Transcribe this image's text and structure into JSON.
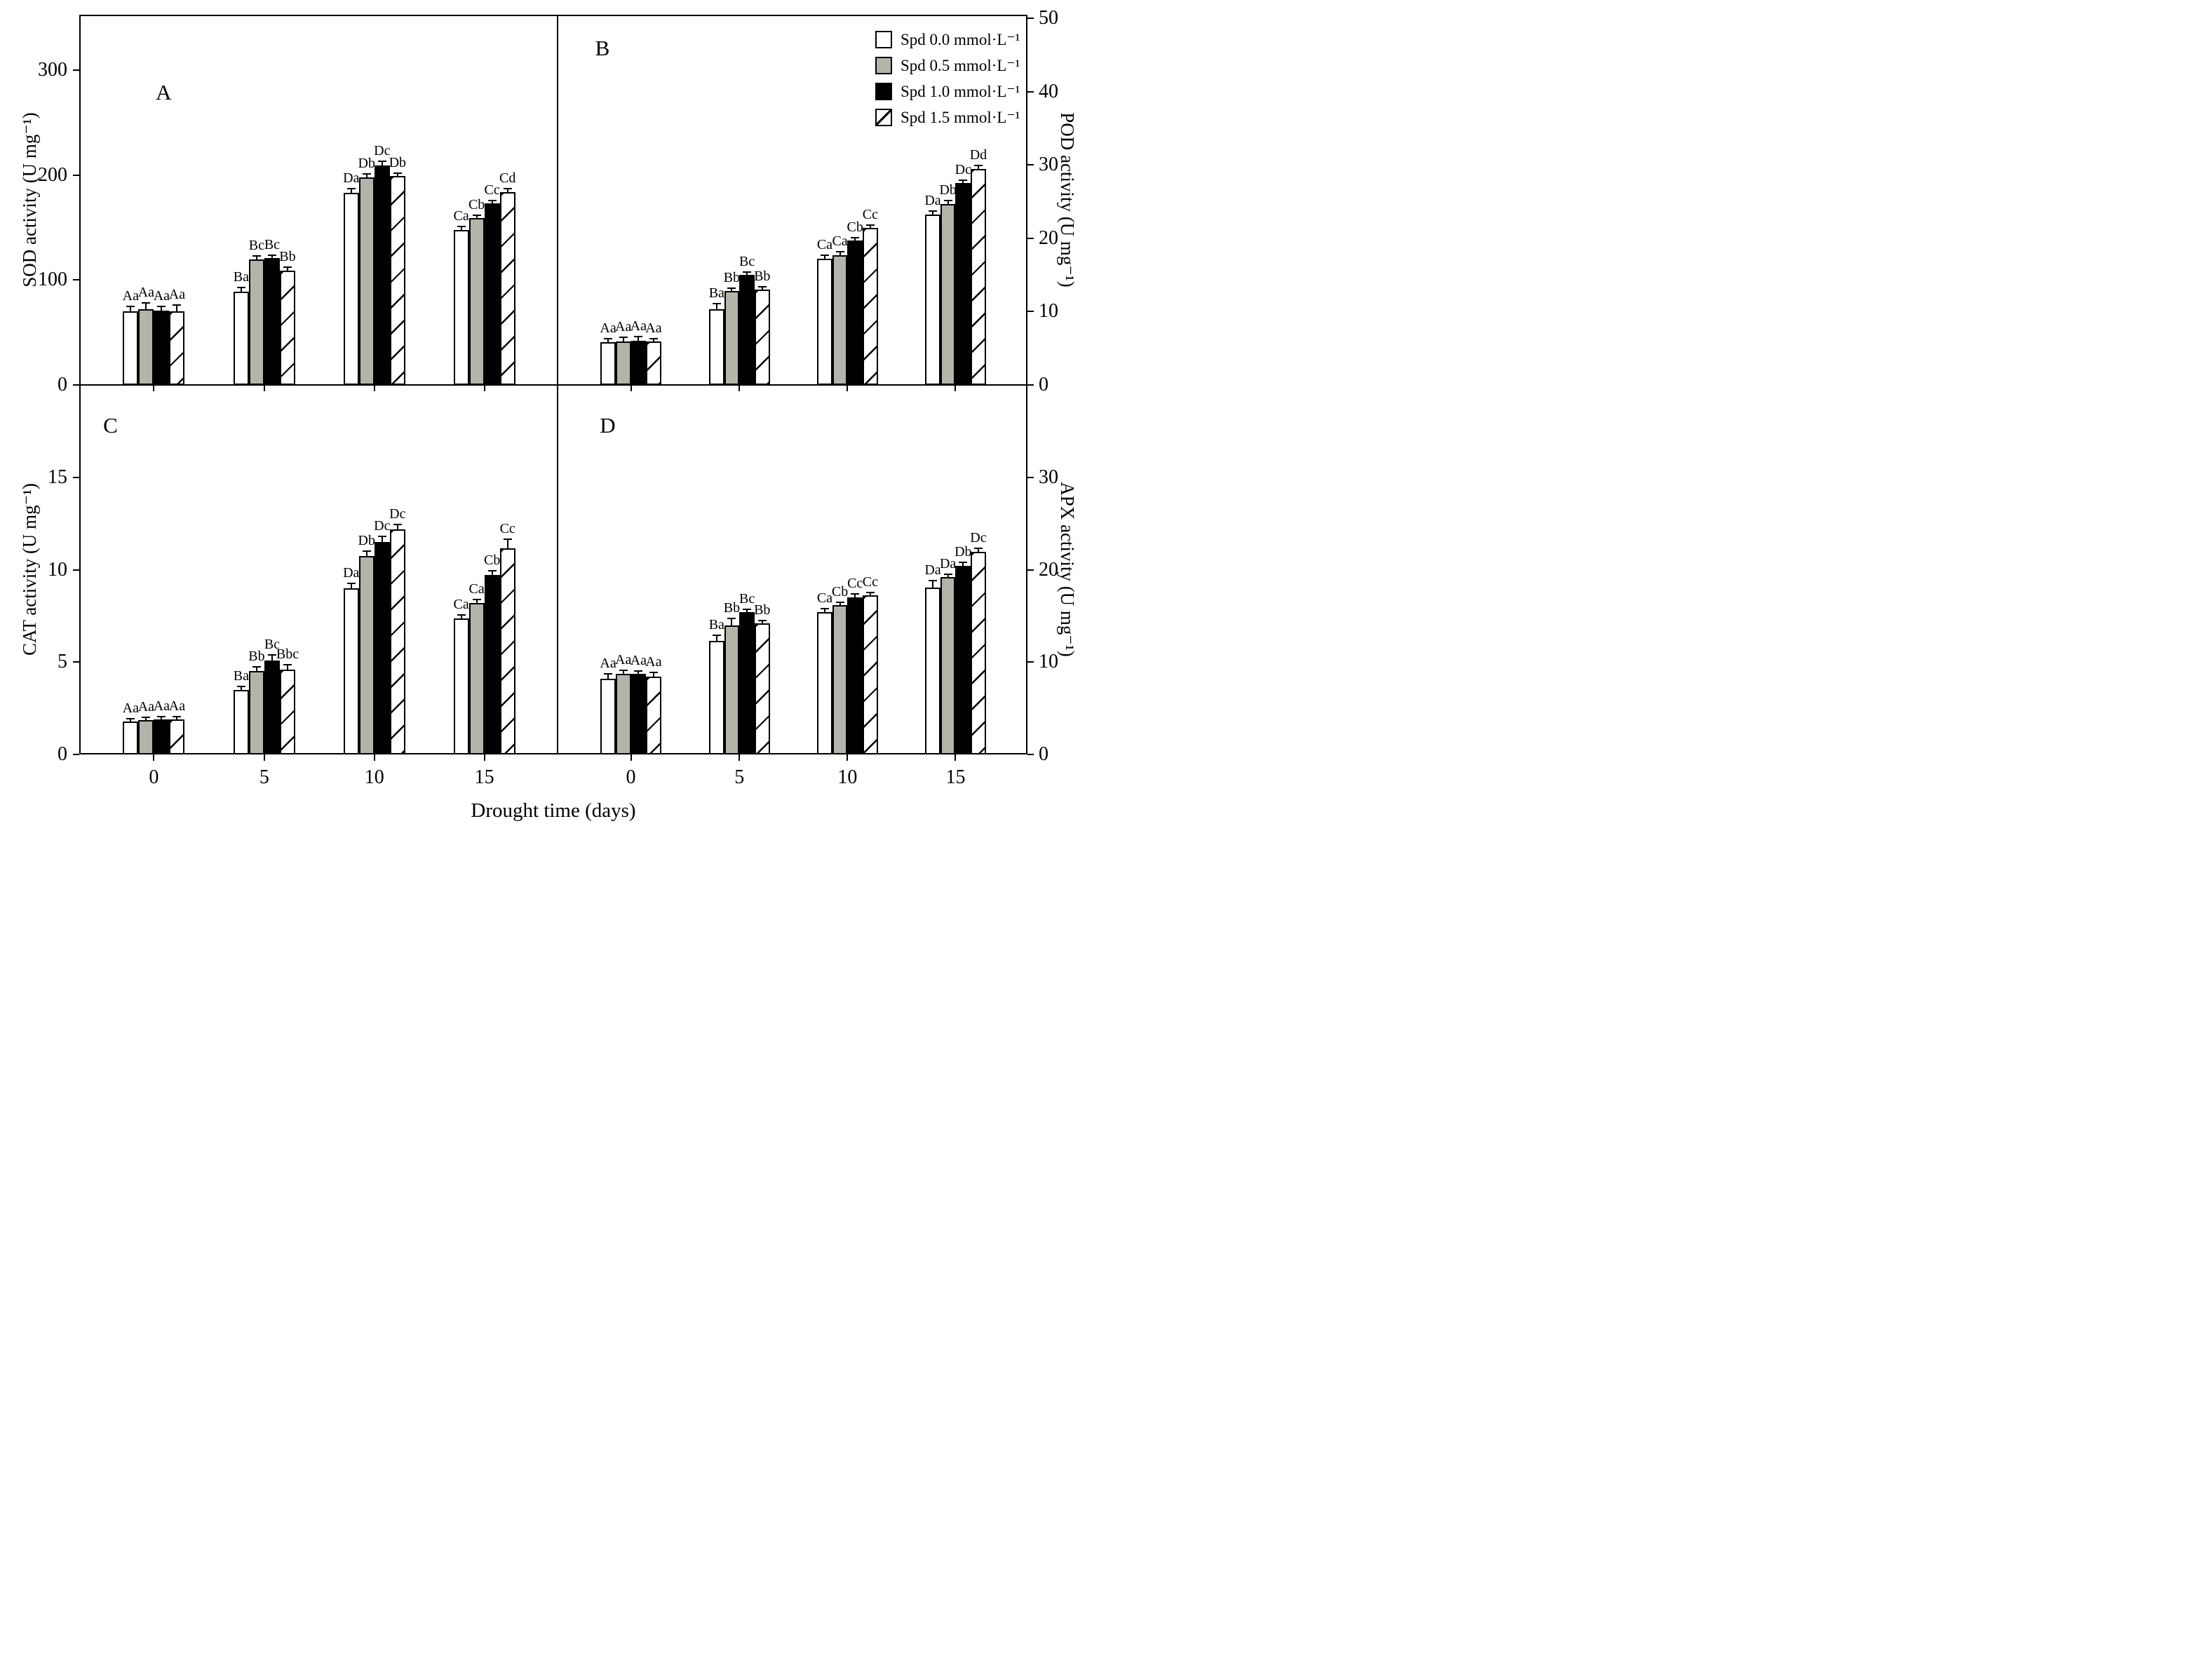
{
  "x_axis": {
    "title": "Drought time (days)",
    "categories": [
      "0",
      "5",
      "10",
      "15"
    ]
  },
  "legend": {
    "items": [
      {
        "label": "Spd 0.0 mmol·L⁻¹",
        "pattern": "white"
      },
      {
        "label": "Spd 0.5 mmol·L⁻¹",
        "pattern": "gray"
      },
      {
        "label": "Spd 1.0 mmol·L⁻¹",
        "pattern": "black"
      },
      {
        "label": "Spd 1.5 mmol·L⁻¹",
        "pattern": "hatch"
      }
    ]
  },
  "colors": {
    "background": "#ffffff",
    "axis": "#000000",
    "bar_white": "#ffffff",
    "bar_gray": "#b5b4aa",
    "bar_black": "#000000",
    "hatch_line": "#000000"
  },
  "chart_data": [
    {
      "panel_letter": "A",
      "type": "bar",
      "y_axis": {
        "label": "SOD activity (U mg⁻¹)",
        "side": "left",
        "ticks": [
          0,
          100,
          200,
          300
        ],
        "ylim": [
          0,
          353
        ]
      },
      "xlabel": "Drought time (days)",
      "categories": [
        "0",
        "5",
        "10",
        "15"
      ],
      "grid": false,
      "series": [
        {
          "name": "Spd 0.0 mmol·L⁻¹",
          "pattern": "white",
          "values": [
            70,
            89,
            183,
            148
          ],
          "errors": [
            5,
            4,
            4,
            3
          ],
          "letters": [
            "Aa",
            "Ba",
            "Da",
            "Ca"
          ]
        },
        {
          "name": "Spd 0.5 mmol·L⁻¹",
          "pattern": "gray",
          "values": [
            72,
            120,
            198,
            159
          ],
          "errors": [
            6,
            3,
            3,
            3
          ],
          "letters": [
            "Aa",
            "Bc",
            "Db",
            "Cb"
          ]
        },
        {
          "name": "Spd 1.0 mmol·L⁻¹",
          "pattern": "black",
          "values": [
            71,
            121,
            209,
            173
          ],
          "errors": [
            4,
            3,
            4,
            3
          ],
          "letters": [
            "Aa",
            "Bc",
            "Dc",
            "Cc"
          ]
        },
        {
          "name": "Spd 1.5 mmol·L⁻¹",
          "pattern": "hatch",
          "values": [
            70,
            109,
            199,
            184
          ],
          "errors": [
            6,
            3,
            3,
            3
          ],
          "letters": [
            "Aa",
            "Bb",
            "Db",
            "Cd"
          ]
        }
      ]
    },
    {
      "panel_letter": "B",
      "type": "bar",
      "y_axis": {
        "label": "POD activity (U mg⁻¹)",
        "side": "right",
        "ticks": [
          0,
          10,
          20,
          30,
          40,
          50
        ],
        "ylim": [
          0,
          50.5
        ]
      },
      "xlabel": "Drought time (days)",
      "categories": [
        "0",
        "5",
        "10",
        "15"
      ],
      "grid": false,
      "series": [
        {
          "name": "Spd 0.0 mmol·L⁻¹",
          "pattern": "white",
          "values": [
            5.8,
            10.3,
            17.2,
            23.2
          ],
          "errors": [
            0.5,
            0.8,
            0.5,
            0.5
          ],
          "letters": [
            "Aa",
            "Ba",
            "Ca",
            "Da"
          ]
        },
        {
          "name": "Spd 0.5 mmol·L⁻¹",
          "pattern": "gray",
          "values": [
            5.9,
            12.8,
            17.7,
            24.7
          ],
          "errors": [
            0.6,
            0.4,
            0.5,
            0.5
          ],
          "letters": [
            "Aa",
            "Bb",
            "Ca",
            "Db"
          ]
        },
        {
          "name": "Spd 1.0 mmol·L⁻¹",
          "pattern": "black",
          "values": [
            6.0,
            15.0,
            19.7,
            27.5
          ],
          "errors": [
            0.6,
            0.4,
            0.4,
            0.4
          ],
          "letters": [
            "Aa",
            "Bc",
            "Cb",
            "Dc"
          ]
        },
        {
          "name": "Spd 1.5 mmol·L⁻¹",
          "pattern": "hatch",
          "values": [
            5.9,
            13.0,
            21.4,
            29.5
          ],
          "errors": [
            0.4,
            0.4,
            0.4,
            0.4
          ],
          "letters": [
            "Aa",
            "Bb",
            "Cc",
            "Dd"
          ]
        }
      ]
    },
    {
      "panel_letter": "C",
      "type": "bar",
      "y_axis": {
        "label": "CAT activity (U mg⁻¹)",
        "side": "left",
        "ticks": [
          0,
          5,
          10,
          15
        ],
        "ylim": [
          0,
          20
        ]
      },
      "xlabel": "Drought time (days)",
      "categories": [
        "0",
        "5",
        "10",
        "15"
      ],
      "grid": false,
      "series": [
        {
          "name": "Spd 0.0 mmol·L⁻¹",
          "pattern": "white",
          "values": [
            1.8,
            3.5,
            9.0,
            7.35
          ],
          "errors": [
            0.15,
            0.2,
            0.25,
            0.2
          ],
          "letters": [
            "Aa",
            "Ba",
            "Da",
            "Ca"
          ]
        },
        {
          "name": "Spd 0.5 mmol·L⁻¹",
          "pattern": "gray",
          "values": [
            1.85,
            4.5,
            10.75,
            8.2
          ],
          "errors": [
            0.15,
            0.25,
            0.25,
            0.2
          ],
          "letters": [
            "Aa",
            "Bb",
            "Db",
            "Ca"
          ]
        },
        {
          "name": "Spd 1.0 mmol·L⁻¹",
          "pattern": "black",
          "values": [
            1.9,
            5.1,
            11.5,
            9.7
          ],
          "errors": [
            0.15,
            0.3,
            0.3,
            0.25
          ],
          "letters": [
            "Aa",
            "Bc",
            "Dc",
            "Cb"
          ]
        },
        {
          "name": "Spd 1.5 mmol·L⁻¹",
          "pattern": "hatch",
          "values": [
            1.9,
            4.6,
            12.2,
            11.15
          ],
          "errors": [
            0.15,
            0.25,
            0.25,
            0.5
          ],
          "letters": [
            "Aa",
            "Bbc",
            "Dc",
            "Cc"
          ]
        }
      ]
    },
    {
      "panel_letter": "D",
      "type": "bar",
      "y_axis": {
        "label": "APX activity (U mg⁻¹)",
        "side": "right",
        "ticks": [
          0,
          10,
          20,
          30
        ],
        "ylim": [
          0,
          40
        ]
      },
      "xlabel": "Drought time (days)",
      "categories": [
        "0",
        "5",
        "10",
        "15"
      ],
      "grid": false,
      "series": [
        {
          "name": "Spd 0.0 mmol·L⁻¹",
          "pattern": "white",
          "values": [
            8.2,
            12.3,
            15.4,
            18.1
          ],
          "errors": [
            0.5,
            0.6,
            0.4,
            0.7
          ],
          "letters": [
            "Aa",
            "Ba",
            "Ca",
            "Da"
          ]
        },
        {
          "name": "Spd 0.5 mmol·L⁻¹",
          "pattern": "gray",
          "values": [
            8.7,
            14.0,
            16.2,
            19.2
          ],
          "errors": [
            0.4,
            0.7,
            0.3,
            0.3
          ],
          "letters": [
            "Aa",
            "Bb",
            "Cb",
            "Da"
          ]
        },
        {
          "name": "Spd 1.0 mmol·L⁻¹",
          "pattern": "black",
          "values": [
            8.7,
            15.4,
            17.0,
            20.4
          ],
          "errors": [
            0.3,
            0.3,
            0.4,
            0.4
          ],
          "letters": [
            "Aa",
            "Bc",
            "Cc",
            "Db"
          ]
        },
        {
          "name": "Spd 1.5 mmol·L⁻¹",
          "pattern": "hatch",
          "values": [
            8.4,
            14.2,
            17.2,
            21.9
          ],
          "errors": [
            0.5,
            0.3,
            0.3,
            0.4
          ],
          "letters": [
            "Aa",
            "Bb",
            "Cc",
            "Dc"
          ]
        }
      ]
    }
  ]
}
